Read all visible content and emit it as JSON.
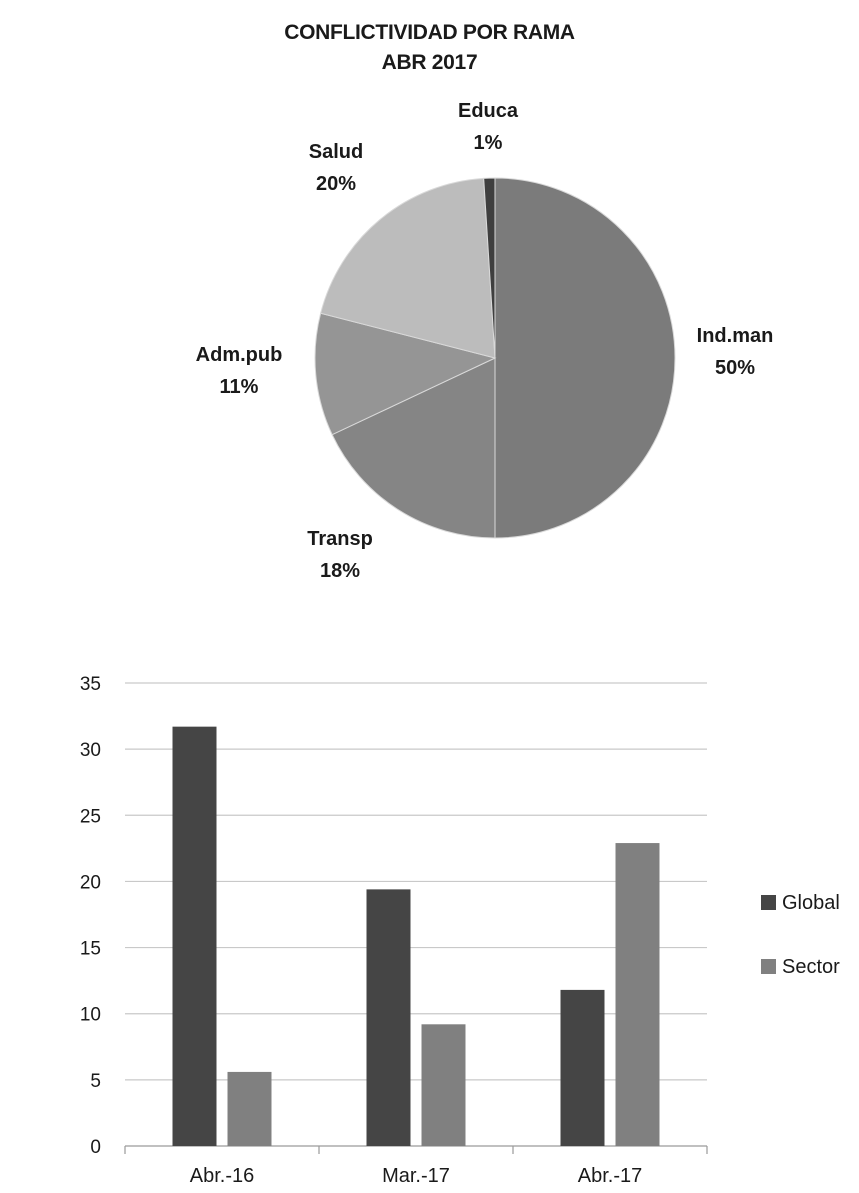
{
  "chart_data": [
    {
      "type": "pie",
      "title": "CONFLICTIVIDAD POR RAMA",
      "subtitle": "ABR 2017",
      "slices": [
        {
          "name": "Ind.man",
          "value": 50,
          "label": "50%",
          "color": "#7b7b7b"
        },
        {
          "name": "Transp",
          "value": 18,
          "label": "18%",
          "color": "#858585"
        },
        {
          "name": "Adm.pub",
          "value": 11,
          "label": "11%",
          "color": "#959595"
        },
        {
          "name": "Salud",
          "value": 20,
          "label": "20%",
          "color": "#bcbcbc"
        },
        {
          "name": "Educa",
          "value": 1,
          "label": "1%",
          "color": "#3f3f3f"
        }
      ]
    },
    {
      "type": "bar",
      "categories": [
        "Abr.-16",
        "Mar.-17",
        "Abr.-17"
      ],
      "series": [
        {
          "name": "Global",
          "values": [
            31.7,
            19.4,
            11.8
          ],
          "color": "#454545"
        },
        {
          "name": "Sector",
          "values": [
            5.6,
            9.2,
            22.9
          ],
          "color": "#808080"
        }
      ],
      "ylim": [
        0,
        35
      ],
      "yticks": [
        0,
        5,
        10,
        15,
        20,
        25,
        30,
        35
      ],
      "grid": true,
      "legend": "right",
      "xlabel": "",
      "ylabel": ""
    }
  ]
}
